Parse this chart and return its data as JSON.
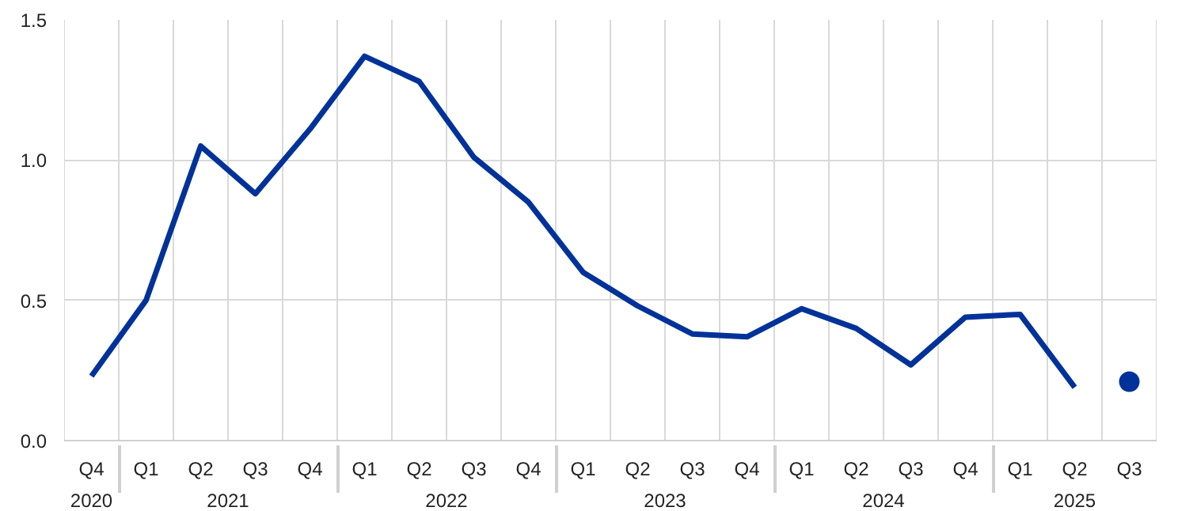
{
  "chart_data": {
    "type": "line",
    "categories": [
      "Q4",
      "Q1",
      "Q2",
      "Q3",
      "Q4",
      "Q1",
      "Q2",
      "Q3",
      "Q4",
      "Q1",
      "Q2",
      "Q3",
      "Q4",
      "Q1",
      "Q2",
      "Q3",
      "Q4",
      "Q1",
      "Q2",
      "Q3"
    ],
    "annotations": [
      "2020",
      "2021",
      "2022",
      "2023",
      "2024",
      "2025"
    ],
    "series": [
      {
        "color": "#003299",
        "marker": "none",
        "values": [
          0.23,
          0.5,
          1.05,
          0.88,
          1.11,
          1.37,
          1.28,
          1.01,
          0.85,
          0.6,
          0.48,
          0.38,
          0.37,
          0.47,
          0.4,
          0.27,
          0.44,
          0.45,
          0.19,
          null
        ]
      },
      {
        "type": "scatter",
        "color": "#003299",
        "marker": "circle",
        "values": [
          null,
          null,
          null,
          null,
          null,
          null,
          null,
          null,
          null,
          null,
          null,
          null,
          null,
          null,
          null,
          null,
          null,
          null,
          null,
          0.21
        ]
      }
    ],
    "ylim": [
      0,
      1.5
    ],
    "yticks": [
      {
        "value": 0,
        "label": "0.0"
      },
      {
        "value": 0.5,
        "label": "0.5"
      },
      {
        "value": 1,
        "label": "1.0"
      },
      {
        "value": 1.5,
        "label": "1.5"
      }
    ],
    "grid": true,
    "line_style": "solid"
  }
}
